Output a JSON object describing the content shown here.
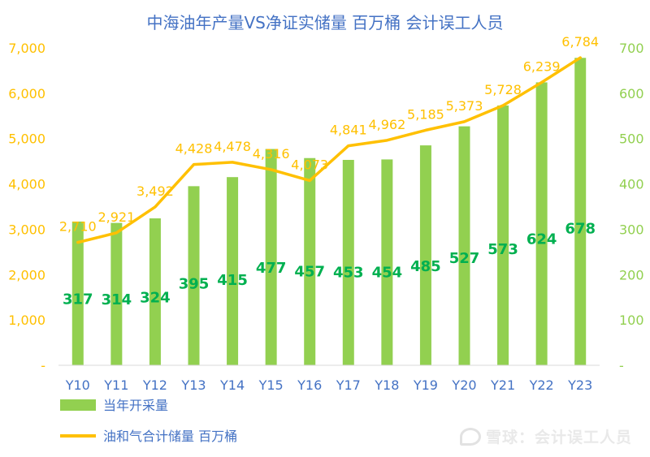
{
  "chart_data": {
    "type": "bar",
    "title": "中海油年产量VS净证实储量 百万桶 会计误工人员",
    "categories": [
      "Y10",
      "Y11",
      "Y12",
      "Y13",
      "Y14",
      "Y15",
      "Y16",
      "Y17",
      "Y18",
      "Y19",
      "Y20",
      "Y21",
      "Y22",
      "Y23"
    ],
    "series": [
      {
        "name": "当年开采量",
        "type": "bar",
        "axis": "right",
        "color": "#92D050",
        "values": [
          317,
          314,
          324,
          395,
          415,
          477,
          457,
          453,
          454,
          485,
          527,
          573,
          624,
          678
        ]
      },
      {
        "name": "油和气合计储量 百万桶",
        "type": "line",
        "axis": "left",
        "color": "#FFC000",
        "values": [
          2710,
          2921,
          3492,
          4428,
          4478,
          4316,
          4073,
          4841,
          4962,
          5185,
          5373,
          5728,
          6239,
          6784
        ]
      }
    ],
    "left_axis": {
      "min": 0,
      "max": 7000,
      "step": 1000,
      "tick_labels": [
        "-",
        "1,000",
        "2,000",
        "3,000",
        "4,000",
        "5,000",
        "6,000",
        "7,000"
      ],
      "color": "#FFC000"
    },
    "right_axis": {
      "min": 0,
      "max": 700,
      "step": 100,
      "tick_labels": [
        "-",
        "100",
        "200",
        "300",
        "400",
        "500",
        "600",
        "700"
      ],
      "color": "#92D050"
    },
    "bar_label_color": "#00B050",
    "line_label_color": "#FFC000",
    "line_labels": [
      "2,710",
      "2,921",
      "3,492",
      "4,428",
      "4,478",
      "4,316",
      "4,073",
      "4,841",
      "4,962",
      "5,185",
      "5,373",
      "5,728",
      "6,239",
      "6,784"
    ],
    "grid": false,
    "legend": "bottom-left"
  },
  "watermark": "雪球：会计误工人员"
}
